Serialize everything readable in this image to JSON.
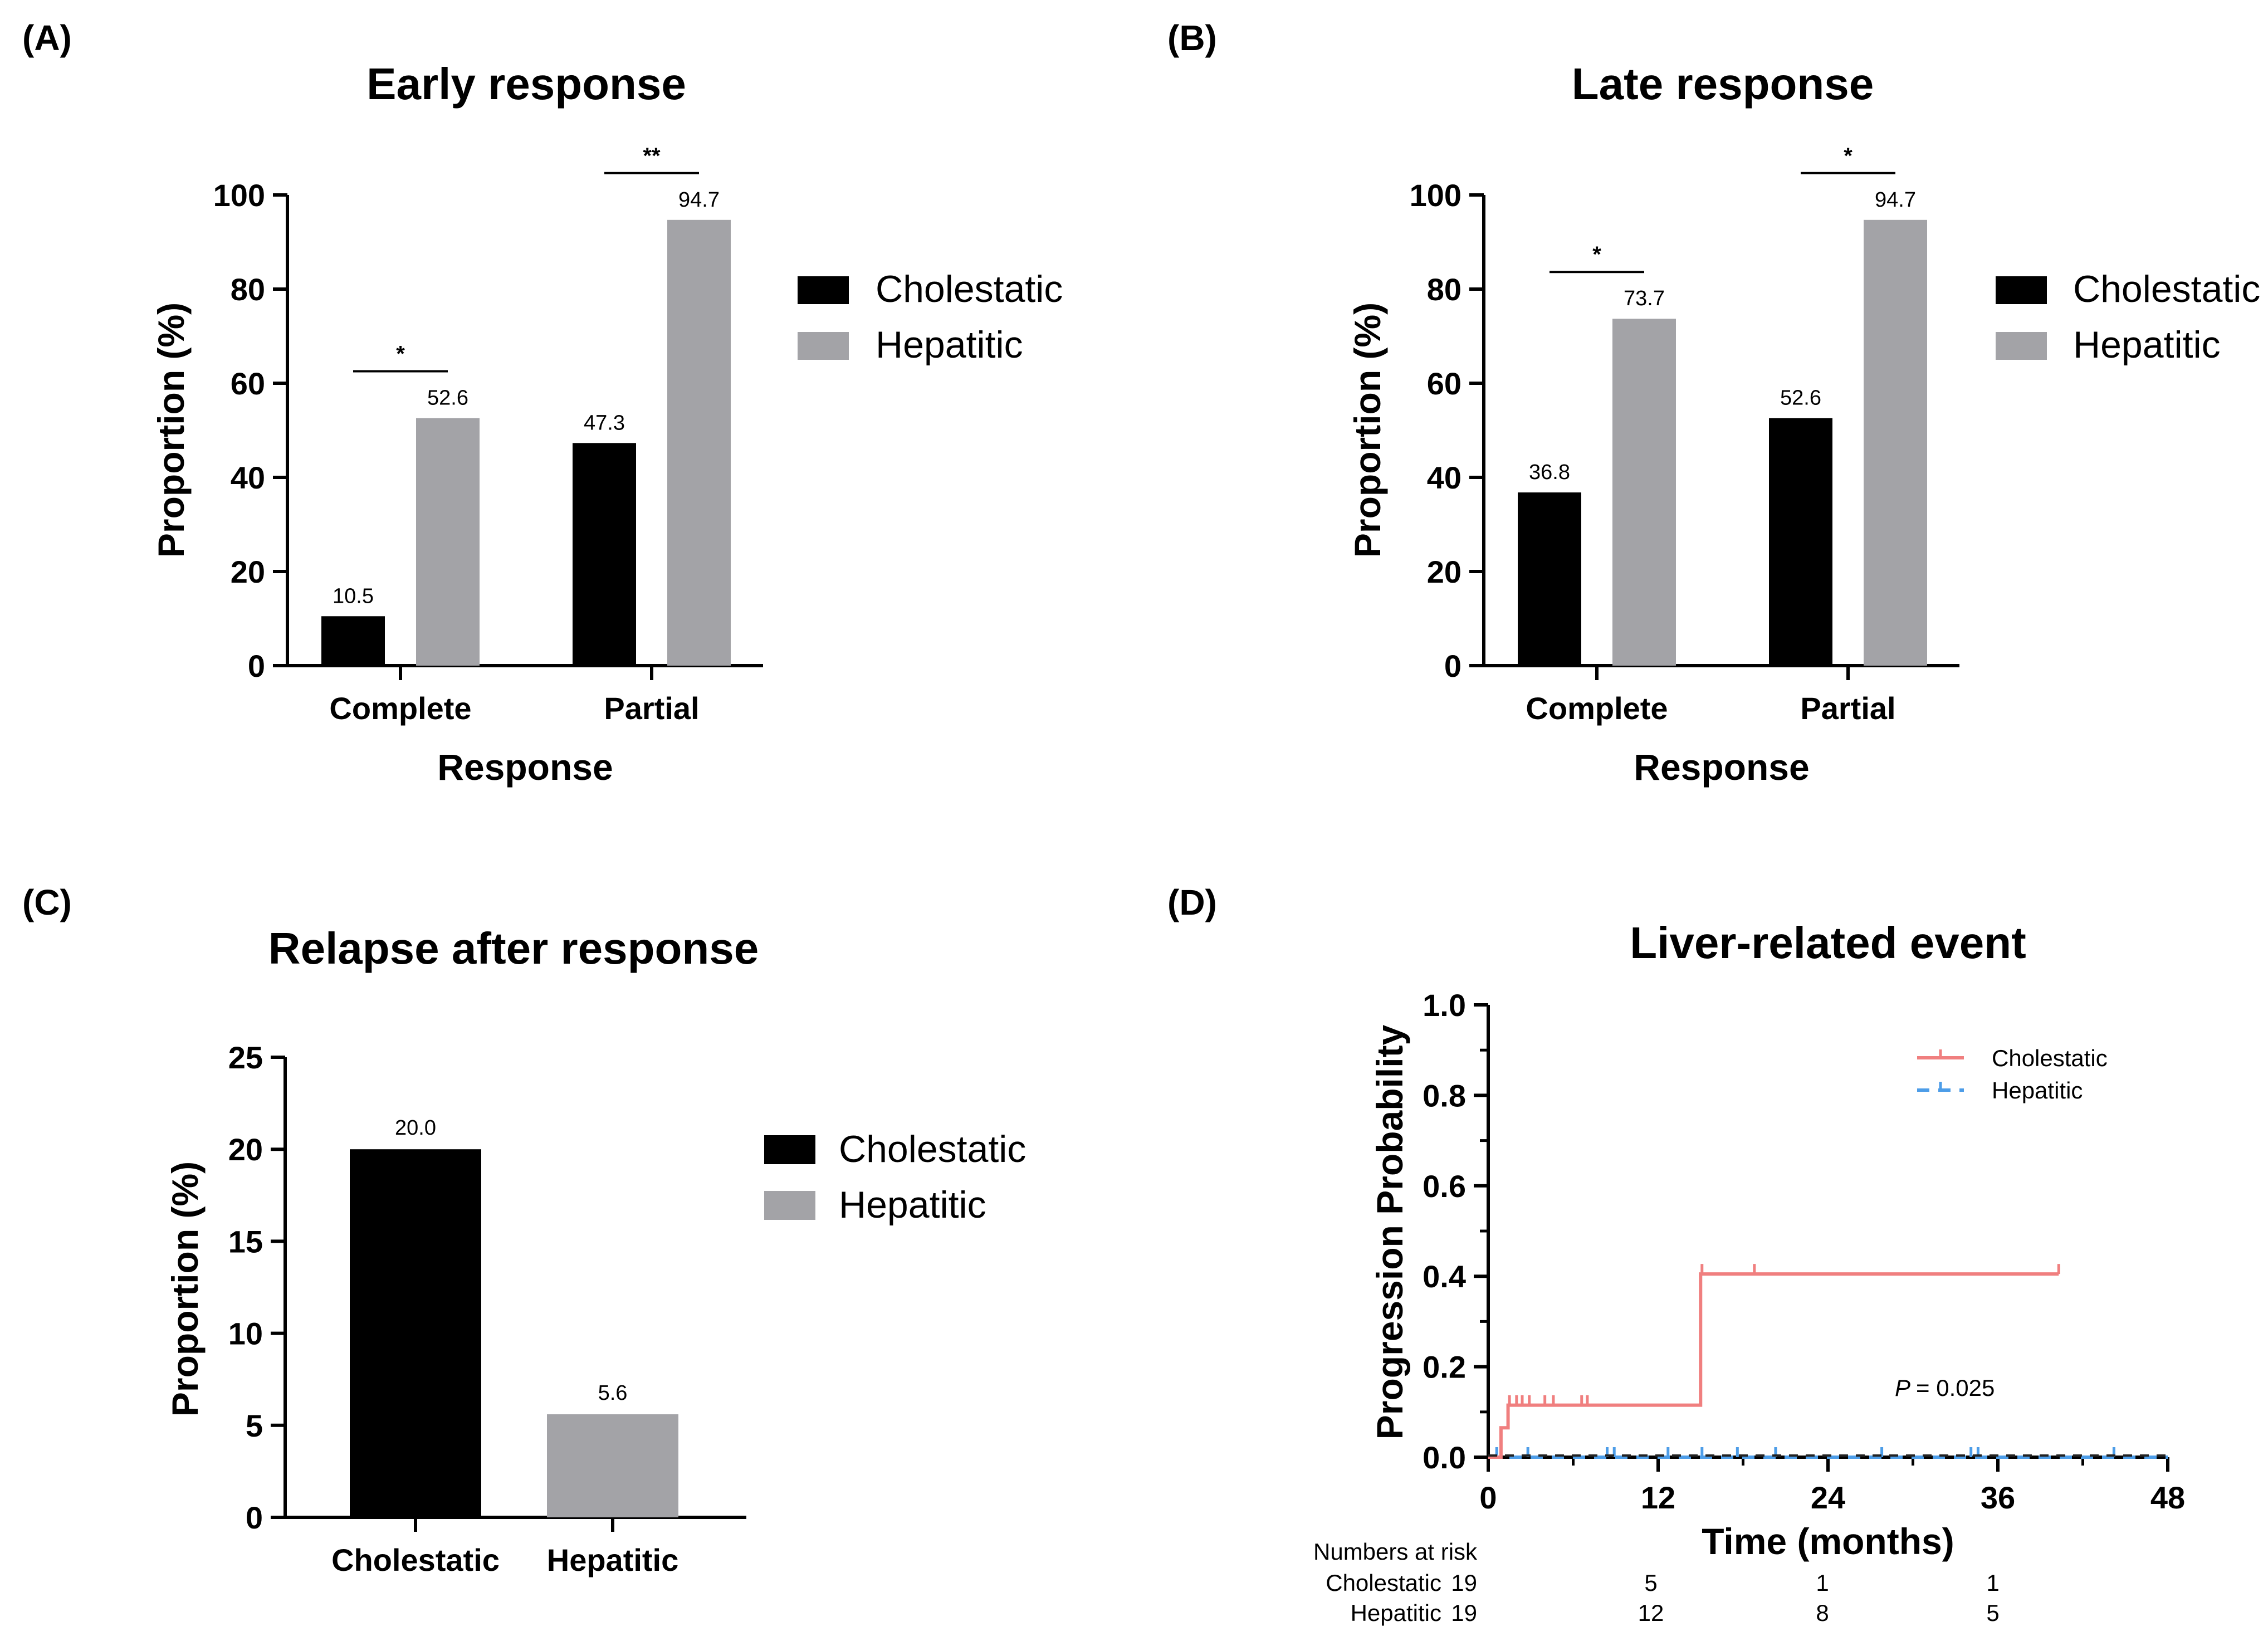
{
  "chart_data": [
    {
      "panel": "(A)",
      "type": "bar",
      "title": "Early response",
      "xlabel": "Response",
      "ylabel": "Proportion (%)",
      "ylim": [
        0,
        100
      ],
      "yticks": [
        "0",
        "20",
        "40",
        "60",
        "80",
        "100"
      ],
      "categories": [
        "Complete",
        "Partial"
      ],
      "series": [
        {
          "name": "Cholestatic",
          "color": "#000000",
          "values": [
            10.5,
            47.3
          ],
          "labels": [
            "10.5",
            "47.3"
          ]
        },
        {
          "name": "Hepatitic",
          "color": "#a3a3a7",
          "values": [
            52.6,
            94.7
          ],
          "labels": [
            "52.6",
            "94.7"
          ]
        }
      ],
      "significance": [
        "*",
        "**"
      ],
      "legend": "right"
    },
    {
      "panel": "(B)",
      "type": "bar",
      "title": "Late response",
      "xlabel": "Response",
      "ylabel": "Proportion (%)",
      "ylim": [
        0,
        100
      ],
      "yticks": [
        "0",
        "20",
        "40",
        "60",
        "80",
        "100"
      ],
      "categories": [
        "Complete",
        "Partial"
      ],
      "series": [
        {
          "name": "Cholestatic",
          "color": "#000000",
          "values": [
            36.8,
            52.6
          ],
          "labels": [
            "36.8",
            "52.6"
          ]
        },
        {
          "name": "Hepatitic",
          "color": "#a3a3a7",
          "values": [
            73.7,
            94.7
          ],
          "labels": [
            "73.7",
            "94.7"
          ]
        }
      ],
      "significance": [
        "*",
        "*"
      ],
      "legend": "right"
    },
    {
      "panel": "(C)",
      "type": "bar",
      "title": "Relapse after response",
      "xlabel": "",
      "ylabel": "Proportion (%)",
      "ylim": [
        0,
        25
      ],
      "yticks": [
        "0",
        "5",
        "10",
        "15",
        "20",
        "25"
      ],
      "categories": [
        "Cholestatic",
        "Hepatitic"
      ],
      "values": [
        20.0,
        5.6
      ],
      "labels": [
        "20.0",
        "5.6"
      ],
      "colors": [
        "#000000",
        "#a3a3a7"
      ],
      "legend_entries": [
        "Cholestatic",
        "Hepatitic"
      ],
      "legend": "right"
    },
    {
      "panel": "(D)",
      "type": "line",
      "title": "Liver-related event",
      "xlabel": "Time (months)",
      "ylabel": "Progression Probability",
      "xlim": [
        0,
        48
      ],
      "ylim": [
        0,
        1.0
      ],
      "xticks": [
        "0",
        "12",
        "24",
        "36",
        "48"
      ],
      "yticks": [
        "0.0",
        "0.2",
        "0.4",
        "0.6",
        "0.8",
        "1.0"
      ],
      "annotation": "= 0.025",
      "annotation_p": "P",
      "series": [
        {
          "name": "Cholestatic",
          "color": "#f07f7f",
          "steps": [
            [
              0,
              0
            ],
            [
              0.9,
              0.065
            ],
            [
              1.4,
              0.115
            ],
            [
              15,
              0.115
            ],
            [
              15,
              0.405
            ],
            [
              40.3,
              0.405
            ]
          ],
          "censors": [
            [
              1.5,
              0.115
            ],
            [
              2,
              0.115
            ],
            [
              2.4,
              0.115
            ],
            [
              2.9,
              0.115
            ],
            [
              4,
              0.115
            ],
            [
              4.6,
              0.115
            ],
            [
              6.6,
              0.115
            ],
            [
              7.0,
              0.115
            ],
            [
              15.1,
              0.405
            ],
            [
              18.8,
              0.405
            ],
            [
              40.3,
              0.405
            ]
          ]
        },
        {
          "name": "Hepatitic",
          "color": "#4d9de8",
          "steps": [
            [
              0,
              0
            ],
            [
              48,
              0
            ]
          ],
          "censors": [
            [
              0.6,
              0
            ],
            [
              2.8,
              0
            ],
            [
              8.4,
              0
            ],
            [
              8.9,
              0
            ],
            [
              12.7,
              0
            ],
            [
              15.1,
              0
            ],
            [
              17.6,
              0
            ],
            [
              20.3,
              0
            ],
            [
              27.8,
              0
            ],
            [
              34.1,
              0
            ],
            [
              34.6,
              0
            ],
            [
              44.2,
              0
            ]
          ]
        }
      ],
      "legend": "top-right",
      "risk_table": {
        "heading": "Numbers at risk",
        "rows": [
          {
            "label": "Cholestatic",
            "values": [
              "19",
              "5",
              "1",
              "1"
            ]
          },
          {
            "label": "Hepatitic",
            "values": [
              "19",
              "12",
              "8",
              "5"
            ]
          }
        ]
      }
    }
  ]
}
